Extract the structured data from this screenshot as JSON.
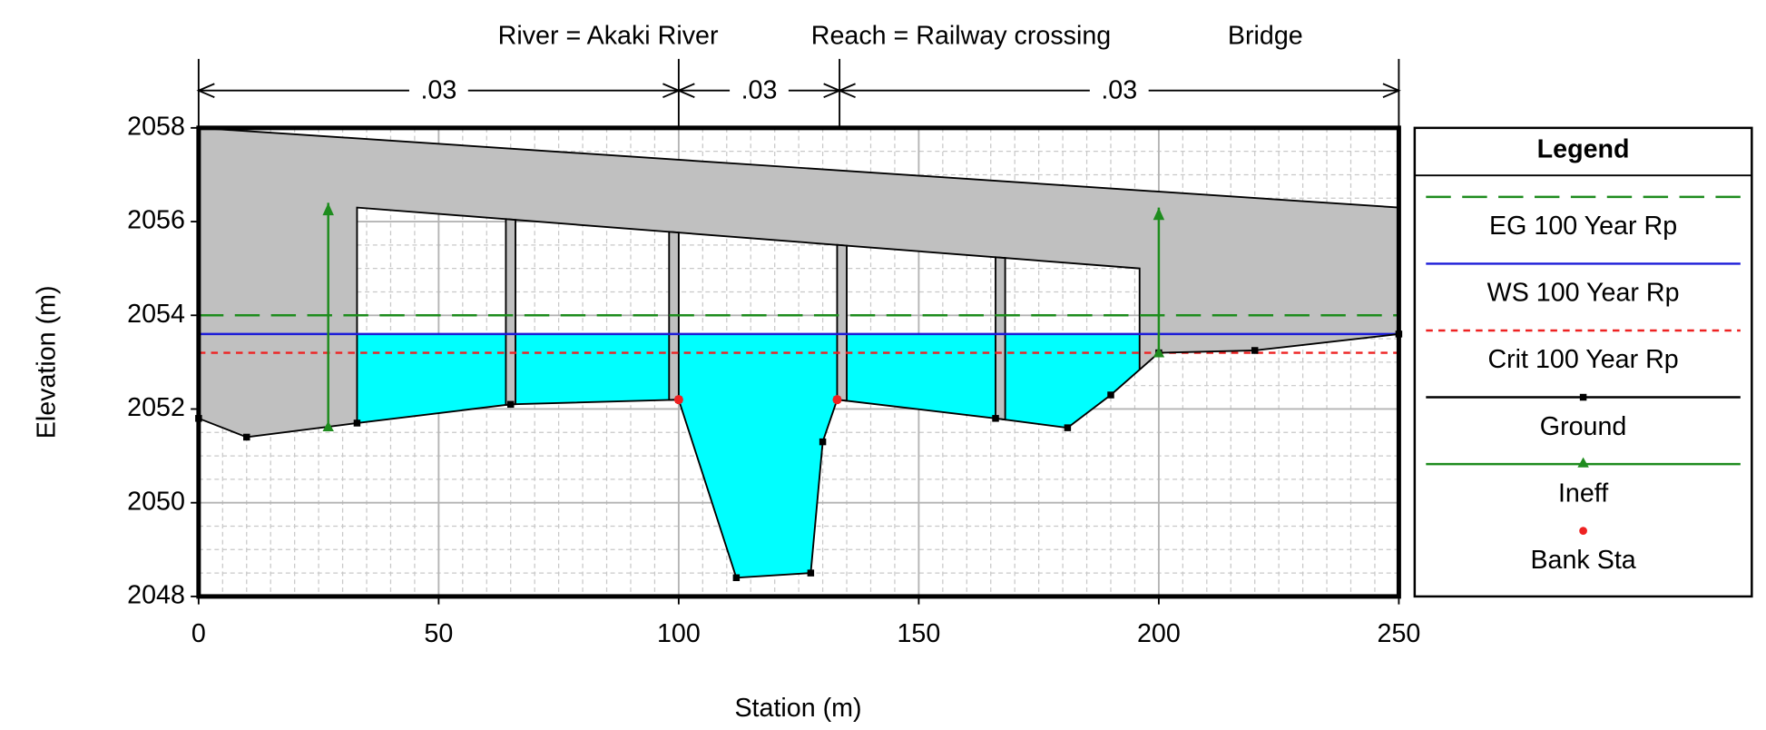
{
  "chart_data": {
    "type": "cross-section",
    "title": [
      "River = Akaki River",
      "Reach = Railway crossing",
      "Bridge"
    ],
    "x_label": "Station (m)",
    "y_label": "Elevation (m)",
    "xlim": [
      0,
      250
    ],
    "xticks": [
      0,
      50,
      100,
      150,
      200,
      250
    ],
    "ylim": [
      2048,
      2058
    ],
    "yticks": [
      2048,
      2050,
      2052,
      2054,
      2056,
      2058
    ],
    "grid": true,
    "legend_title": "Legend",
    "legend_position": "right",
    "manning_n": {
      "stations": [
        0,
        100,
        133.5,
        250
      ],
      "values": [
        {
          "value": 0.03,
          "label": ".03"
        },
        {
          "value": 0.03,
          "label": ".03"
        },
        {
          "value": 0.03,
          "label": ".03"
        }
      ]
    },
    "series": [
      {
        "name": "EG 100 Year Rp",
        "color": "#1e8c1e",
        "style": "dashed",
        "values": [
          2054.0
        ]
      },
      {
        "name": "WS 100 Year Rp",
        "color": "#1c1cd8",
        "style": "solid",
        "values": [
          2053.6
        ]
      },
      {
        "name": "Crit 100 Year Rp",
        "color": "#ee2222",
        "style": "dotted",
        "values": [
          2053.2
        ]
      },
      {
        "name": "Ground",
        "color": "#000000",
        "style": "solid",
        "x": [
          0,
          10,
          33,
          65,
          100,
          112,
          127.5,
          130,
          133,
          166,
          181,
          190,
          200,
          220,
          250
        ],
        "values": [
          2051.8,
          2051.4,
          2051.7,
          2052.1,
          2052.2,
          2048.4,
          2048.5,
          2051.3,
          2052.2,
          2051.8,
          2051.6,
          2052.3,
          2053.2,
          2053.25,
          2053.6
        ]
      },
      {
        "name": "Ineff",
        "color": "#1e8c1e",
        "style": "arrow",
        "x": [
          27,
          200
        ],
        "values": [
          2056.4,
          2056.3
        ]
      },
      {
        "name": "Bank Sta",
        "color": "#ee2222",
        "style": "point",
        "x": [
          100,
          133
        ],
        "values": [
          2052.2,
          2052.2
        ]
      }
    ],
    "water_color": "#00ffff",
    "bridge": {
      "color": "#c0c0c0",
      "high_chord": {
        "x": [
          0,
          250
        ],
        "values": [
          2058,
          2056.3
        ]
      },
      "low_chord": {
        "x": [
          33,
          196
        ],
        "values": [
          2056.3,
          2055.0
        ]
      },
      "piers": [
        {
          "x": [
            64,
            66
          ]
        },
        {
          "x": [
            98,
            100
          ]
        },
        {
          "x": [
            133,
            135
          ]
        },
        {
          "x": [
            166,
            168
          ]
        }
      ]
    }
  }
}
